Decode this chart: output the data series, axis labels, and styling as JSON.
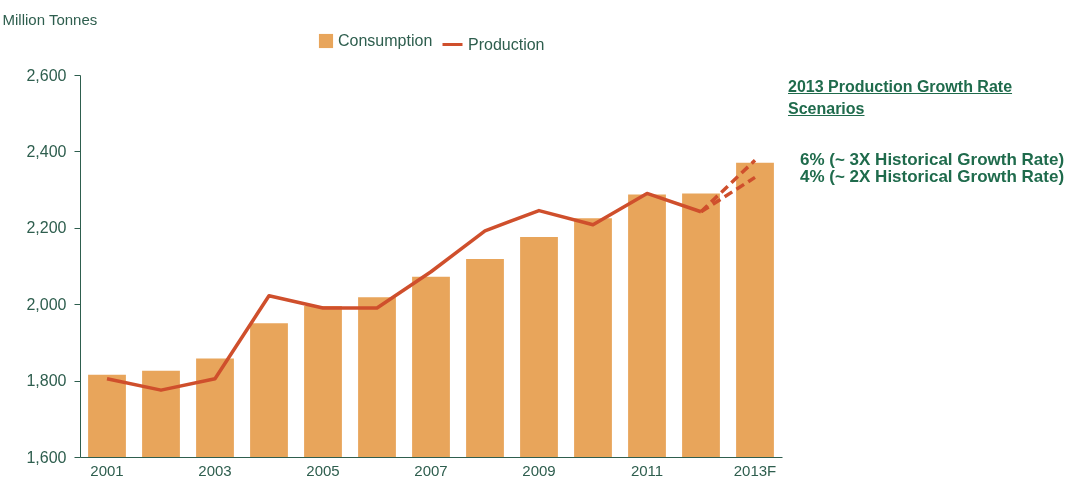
{
  "chart_data": {
    "type": "bar",
    "ylabel": "Million Tonnes",
    "categories": [
      "2001",
      null,
      "2003",
      null,
      "2005",
      null,
      "2007",
      null,
      "2009",
      null,
      "2011",
      null,
      "2013F"
    ],
    "series": [
      {
        "name": "Consumption",
        "color": "#e8a55b",
        "values": [
          1815,
          1826,
          1858,
          1950,
          1995,
          2018,
          2072,
          2118,
          2176,
          2225,
          2287,
          2290,
          2370
        ]
      },
      {
        "name": "Production",
        "type": "line",
        "color": "#cf4f2c",
        "line_style": "solid",
        "values": [
          1805,
          1775,
          1805,
          2022,
          1990,
          1990,
          2085,
          2192,
          2245,
          2208,
          2290,
          2242,
          null
        ]
      },
      {
        "type": "line",
        "color": "#cf4f2c",
        "line_style": "dashed",
        "values": [
          null,
          null,
          null,
          null,
          null,
          null,
          null,
          null,
          null,
          null,
          null,
          2242,
          2377
        ]
      },
      {
        "type": "line",
        "color": "#cf4f2c",
        "line_style": "dashed",
        "values": [
          null,
          null,
          null,
          null,
          null,
          null,
          null,
          null,
          null,
          null,
          null,
          2242,
          2332
        ]
      }
    ],
    "ylim": [
      1600,
      2600
    ],
    "yticks": [
      {
        "value": 1600,
        "label": "1,600"
      },
      {
        "value": 1800,
        "label": "1,800"
      },
      {
        "value": 2000,
        "label": "2,000"
      },
      {
        "value": 2200,
        "label": "2,200"
      },
      {
        "value": 2400,
        "label": "2,400"
      },
      {
        "value": 2600,
        "label": "2,600"
      }
    ],
    "legend": "top",
    "grid": false,
    "annotations": [
      "2013 Production Growth Rate Scenarios",
      {
        "text": "6% (~ 3X Historical Growth Rate)",
        "x": "2013F",
        "y": 2377
      },
      {
        "text": "4% (~ 2X Historical Growth Rate)",
        "x": "2013F",
        "y": 2332
      }
    ]
  }
}
